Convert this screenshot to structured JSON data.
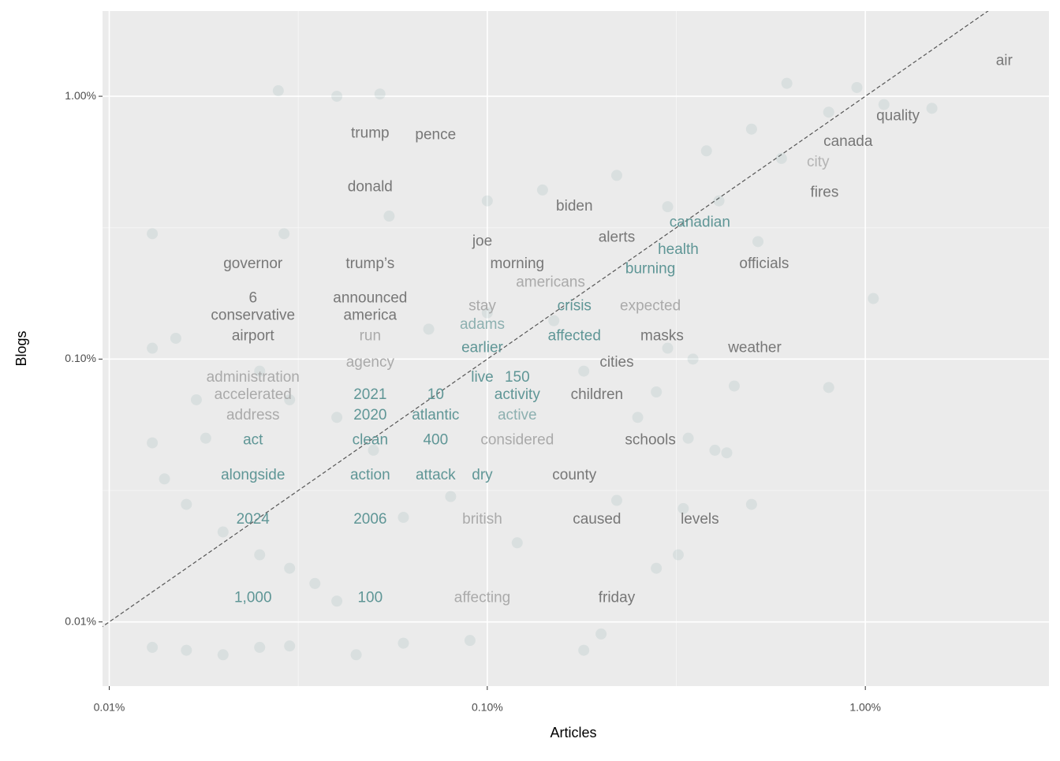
{
  "chart_data": {
    "type": "scatter",
    "x_label": "Articles",
    "y_label": "Blogs",
    "xscale": "log",
    "yscale": "log",
    "grid": true,
    "identity_line": true,
    "xlim": [
      0.0096,
      3.06
    ],
    "ylim": [
      0.0057,
      2.11
    ],
    "xticks": [
      {
        "value": 0.01,
        "label": "0.01%"
      },
      {
        "value": 0.1,
        "label": "0.10%"
      },
      {
        "value": 1,
        "label": "1.00%"
      }
    ],
    "yticks": [
      {
        "value": 0.01,
        "label": "0.01%"
      },
      {
        "value": 0.1,
        "label": "0.10%"
      },
      {
        "value": 1,
        "label": "1.00%"
      }
    ],
    "point_color": "#5b8f8f",
    "points": {
      "x": [
        0.028,
        0.04,
        0.052,
        0.62,
        0.95,
        1.12,
        1.5,
        0.8,
        0.5,
        0.38,
        0.6,
        0.013,
        0.029,
        0.055,
        0.1,
        0.14,
        0.22,
        0.3,
        0.41,
        0.52,
        1.05,
        0.8,
        0.45,
        0.013,
        0.015,
        0.017,
        0.018,
        0.013,
        0.014,
        0.016,
        0.02,
        0.025,
        0.03,
        0.035,
        0.04,
        0.013,
        0.016,
        0.02,
        0.025,
        0.03,
        0.045,
        0.06,
        0.09,
        0.18,
        0.2,
        0.28,
        0.33,
        0.5,
        0.32,
        0.22,
        0.12,
        0.08,
        0.06,
        0.05,
        0.04,
        0.03,
        0.025,
        0.07,
        0.1,
        0.15,
        0.18,
        0.25,
        0.34,
        0.43,
        0.4,
        0.28,
        0.3,
        0.35
      ],
      "y": [
        1.05,
        1.0,
        1.02,
        1.12,
        1.08,
        0.93,
        0.9,
        0.87,
        0.75,
        0.62,
        0.58,
        0.3,
        0.3,
        0.35,
        0.4,
        0.44,
        0.5,
        0.38,
        0.4,
        0.28,
        0.17,
        0.078,
        0.079,
        0.11,
        0.12,
        0.07,
        0.05,
        0.048,
        0.035,
        0.028,
        0.022,
        0.018,
        0.016,
        0.014,
        0.012,
        0.008,
        0.0078,
        0.0075,
        0.008,
        0.0081,
        0.0075,
        0.0083,
        0.0085,
        0.0078,
        0.009,
        0.016,
        0.027,
        0.028,
        0.018,
        0.029,
        0.02,
        0.03,
        0.025,
        0.045,
        0.06,
        0.07,
        0.09,
        0.13,
        0.15,
        0.14,
        0.09,
        0.06,
        0.05,
        0.044,
        0.045,
        0.075,
        0.11,
        0.1
      ]
    },
    "words": {
      "labels": [
        "air",
        "quality",
        "canada",
        "city",
        "fires",
        "trump",
        "pence",
        "donald",
        "biden",
        "canadian",
        "joe",
        "alerts",
        "health",
        "governor",
        "trump’s",
        "morning",
        "officials",
        "burning",
        "americans",
        "6",
        "announced",
        "stay",
        "crisis",
        "expected",
        "conservative",
        "america",
        "adams",
        "airport",
        "run",
        "affected",
        "masks",
        "earlier",
        "weather",
        "agency",
        "cities",
        "administration",
        "live",
        "150",
        "accelerated",
        "2021",
        "10",
        "activity",
        "children",
        "address",
        "2020",
        "atlantic",
        "active",
        "act",
        "clean",
        "400",
        "considered",
        "schools",
        "alongside",
        "action",
        "attack",
        "dry",
        "county",
        "2024",
        "2006",
        "british",
        "caused",
        "levels",
        "1,000",
        "100",
        "affecting",
        "friday"
      ],
      "x": [
        2.33,
        1.22,
        0.9,
        0.75,
        0.78,
        0.049,
        0.073,
        0.049,
        0.17,
        0.365,
        0.097,
        0.22,
        0.32,
        0.024,
        0.049,
        0.12,
        0.54,
        0.27,
        0.147,
        0.024,
        0.049,
        0.097,
        0.17,
        0.27,
        0.024,
        0.049,
        0.097,
        0.024,
        0.049,
        0.17,
        0.29,
        0.097,
        0.51,
        0.049,
        0.22,
        0.024,
        0.097,
        0.12,
        0.024,
        0.049,
        0.073,
        0.12,
        0.195,
        0.024,
        0.049,
        0.073,
        0.12,
        0.024,
        0.049,
        0.073,
        0.12,
        0.27,
        0.024,
        0.049,
        0.073,
        0.097,
        0.17,
        0.024,
        0.049,
        0.097,
        0.195,
        0.365,
        0.024,
        0.049,
        0.097,
        0.22
      ],
      "y": [
        1.36,
        0.84,
        0.67,
        0.56,
        0.43,
        0.72,
        0.71,
        0.45,
        0.38,
        0.33,
        0.28,
        0.29,
        0.26,
        0.23,
        0.23,
        0.23,
        0.23,
        0.22,
        0.195,
        0.17,
        0.17,
        0.159,
        0.159,
        0.159,
        0.146,
        0.146,
        0.135,
        0.122,
        0.122,
        0.122,
        0.122,
        0.11,
        0.11,
        0.097,
        0.097,
        0.085,
        0.085,
        0.085,
        0.073,
        0.073,
        0.073,
        0.073,
        0.073,
        0.061,
        0.061,
        0.061,
        0.061,
        0.049,
        0.049,
        0.049,
        0.049,
        0.049,
        0.036,
        0.036,
        0.036,
        0.036,
        0.036,
        0.0245,
        0.0245,
        0.0245,
        0.0245,
        0.0245,
        0.0123,
        0.0123,
        0.0123,
        0.0123
      ],
      "colors": [
        "#777777",
        "#777777",
        "#777777",
        "#b3b3b3",
        "#777777",
        "#777777",
        "#777777",
        "#777777",
        "#777777",
        "#5f9696",
        "#777777",
        "#777777",
        "#5f9696",
        "#777777",
        "#777777",
        "#777777",
        "#777777",
        "#5f9696",
        "#aaaaaa",
        "#777777",
        "#777777",
        "#aaaaaa",
        "#5f9696",
        "#aaaaaa",
        "#777777",
        "#777777",
        "#8db0b0",
        "#777777",
        "#aaaaaa",
        "#5f9696",
        "#777777",
        "#5f9696",
        "#777777",
        "#aaaaaa",
        "#777777",
        "#aaaaaa",
        "#5f9696",
        "#5f9696",
        "#aaaaaa",
        "#5f9696",
        "#5f9696",
        "#5f9696",
        "#777777",
        "#aaaaaa",
        "#5f9696",
        "#5f9696",
        "#8db0b0",
        "#5f9696",
        "#5f9696",
        "#5f9696",
        "#aaaaaa",
        "#777777",
        "#5f9696",
        "#5f9696",
        "#5f9696",
        "#5f9696",
        "#777777",
        "#5f9696",
        "#5f9696",
        "#aaaaaa",
        "#777777",
        "#777777",
        "#5f9696",
        "#5f9696",
        "#aaaaaa",
        "#777777"
      ]
    }
  }
}
